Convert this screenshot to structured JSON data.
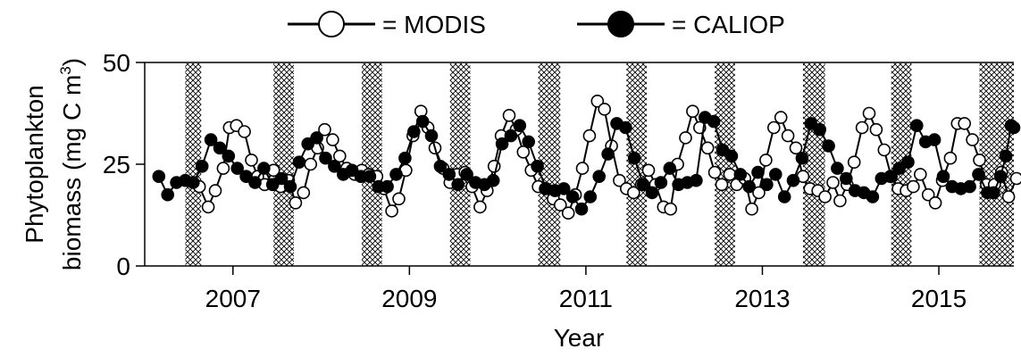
{
  "chart_data": {
    "type": "line",
    "title": "",
    "xlabel": "Year",
    "ylabel_line1": "Phytoplankton",
    "ylabel_line2": "biomass (mg C m",
    "ylabel_sup": "3",
    "ylabel_close": ")",
    "xlim": [
      2006.0,
      2015.85
    ],
    "ylim": [
      0,
      50
    ],
    "y_ticks": [
      0,
      25,
      50
    ],
    "x_ticks": [
      2007,
      2009,
      2011,
      2013,
      2015
    ],
    "x_tick_labels": [
      "2007",
      "2009",
      "2011",
      "2013",
      "2015"
    ],
    "grid": false,
    "legend_position": "top-center",
    "shaded_periods": [
      [
        2006.46,
        2006.64
      ],
      [
        2007.46,
        2007.69
      ],
      [
        2008.46,
        2008.69
      ],
      [
        2009.46,
        2009.69
      ],
      [
        2010.46,
        2010.71
      ],
      [
        2011.46,
        2011.69
      ],
      [
        2012.46,
        2012.69
      ],
      [
        2013.46,
        2013.71
      ],
      [
        2014.46,
        2014.69
      ],
      [
        2015.46,
        2015.85
      ]
    ],
    "series": [
      {
        "name": "= MODIS",
        "marker": "open-circle",
        "points": [
          [
            2006.62,
            19.5
          ],
          [
            2006.72,
            14.5
          ],
          [
            2006.8,
            18.5
          ],
          [
            2006.89,
            24
          ],
          [
            2006.96,
            34
          ],
          [
            2007.04,
            34.5
          ],
          [
            2007.13,
            33
          ],
          [
            2007.21,
            26
          ],
          [
            2007.28,
            22
          ],
          [
            2007.36,
            20
          ],
          [
            2007.46,
            23.5
          ],
          [
            2007.54,
            19.5
          ],
          [
            2007.63,
            21
          ],
          [
            2007.71,
            15.5
          ],
          [
            2007.8,
            18
          ],
          [
            2007.88,
            25
          ],
          [
            2007.96,
            29
          ],
          [
            2008.04,
            33.5
          ],
          [
            2008.13,
            31
          ],
          [
            2008.21,
            27
          ],
          [
            2008.29,
            24
          ],
          [
            2008.38,
            22.5
          ],
          [
            2008.46,
            23.5
          ],
          [
            2008.54,
            22.5
          ],
          [
            2008.63,
            22
          ],
          [
            2008.71,
            19
          ],
          [
            2008.8,
            13.5
          ],
          [
            2008.88,
            16.5
          ],
          [
            2008.96,
            23.5
          ],
          [
            2009.04,
            32
          ],
          [
            2009.13,
            38
          ],
          [
            2009.21,
            34
          ],
          [
            2009.29,
            29
          ],
          [
            2009.38,
            24
          ],
          [
            2009.46,
            20.5
          ],
          [
            2009.54,
            22.5
          ],
          [
            2009.63,
            23
          ],
          [
            2009.71,
            19.5
          ],
          [
            2009.8,
            14.5
          ],
          [
            2009.88,
            18.5
          ],
          [
            2009.96,
            24.5
          ],
          [
            2010.04,
            32
          ],
          [
            2010.13,
            37
          ],
          [
            2010.21,
            33.5
          ],
          [
            2010.29,
            28
          ],
          [
            2010.38,
            23.5
          ],
          [
            2010.46,
            19.5
          ],
          [
            2010.54,
            19
          ],
          [
            2010.63,
            16.5
          ],
          [
            2010.71,
            15
          ],
          [
            2010.8,
            13
          ],
          [
            2010.88,
            17.5
          ],
          [
            2010.96,
            24
          ],
          [
            2011.04,
            32
          ],
          [
            2011.13,
            40.5
          ],
          [
            2011.21,
            38.5
          ],
          [
            2011.29,
            29.5
          ],
          [
            2011.38,
            21
          ],
          [
            2011.46,
            19
          ],
          [
            2011.54,
            18
          ],
          [
            2011.63,
            20
          ],
          [
            2011.71,
            23.5
          ],
          [
            2011.79,
            20
          ],
          [
            2011.88,
            14.5
          ],
          [
            2011.96,
            14
          ],
          [
            2012.04,
            25
          ],
          [
            2012.13,
            31.5
          ],
          [
            2012.21,
            38
          ],
          [
            2012.29,
            34
          ],
          [
            2012.38,
            29
          ],
          [
            2012.46,
            23
          ],
          [
            2012.54,
            20
          ],
          [
            2012.63,
            22.5
          ],
          [
            2012.71,
            20
          ],
          [
            2012.8,
            21.5
          ],
          [
            2012.88,
            14
          ],
          [
            2012.96,
            18
          ],
          [
            2013.04,
            26
          ],
          [
            2013.13,
            34
          ],
          [
            2013.21,
            36.5
          ],
          [
            2013.29,
            32
          ],
          [
            2013.38,
            29
          ],
          [
            2013.46,
            22
          ],
          [
            2013.54,
            19
          ],
          [
            2013.63,
            18.5
          ],
          [
            2013.71,
            17
          ],
          [
            2013.8,
            20.5
          ],
          [
            2013.88,
            16
          ],
          [
            2013.96,
            20
          ],
          [
            2014.04,
            25.5
          ],
          [
            2014.13,
            34
          ],
          [
            2014.21,
            37.5
          ],
          [
            2014.29,
            33.5
          ],
          [
            2014.38,
            28.5
          ],
          [
            2014.46,
            22
          ],
          [
            2014.54,
            19
          ],
          [
            2014.63,
            18.5
          ],
          [
            2014.71,
            19.5
          ],
          [
            2014.79,
            22.5
          ],
          [
            2014.88,
            17.5
          ],
          [
            2014.96,
            15.5
          ],
          [
            2015.04,
            21
          ],
          [
            2015.13,
            26.5
          ],
          [
            2015.21,
            35
          ],
          [
            2015.29,
            35
          ],
          [
            2015.38,
            31
          ],
          [
            2015.46,
            26
          ],
          [
            2015.54,
            20
          ],
          [
            2015.63,
            20
          ],
          [
            2015.71,
            23
          ],
          [
            2015.79,
            17
          ],
          [
            2015.88,
            21.5
          ]
        ]
      },
      {
        "name": "= CALIOP",
        "marker": "filled-circle",
        "points": [
          [
            2006.16,
            22
          ],
          [
            2006.26,
            17.5
          ],
          [
            2006.36,
            20.5
          ],
          [
            2006.46,
            21
          ],
          [
            2006.55,
            20.5
          ],
          [
            2006.65,
            24.5
          ],
          [
            2006.75,
            31
          ],
          [
            2006.85,
            29
          ],
          [
            2006.95,
            27
          ],
          [
            2007.05,
            24
          ],
          [
            2007.15,
            22
          ],
          [
            2007.25,
            20.5
          ],
          [
            2007.35,
            24
          ],
          [
            2007.45,
            20
          ],
          [
            2007.55,
            21.5
          ],
          [
            2007.65,
            19.5
          ],
          [
            2007.75,
            25.5
          ],
          [
            2007.85,
            30
          ],
          [
            2007.95,
            31.5
          ],
          [
            2008.05,
            26.5
          ],
          [
            2008.15,
            24.5
          ],
          [
            2008.25,
            22.5
          ],
          [
            2008.35,
            23.5
          ],
          [
            2008.45,
            22
          ],
          [
            2008.55,
            22
          ],
          [
            2008.65,
            19.5
          ],
          [
            2008.75,
            19.5
          ],
          [
            2008.85,
            22.5
          ],
          [
            2008.95,
            26.5
          ],
          [
            2009.05,
            33
          ],
          [
            2009.15,
            35.5
          ],
          [
            2009.25,
            32
          ],
          [
            2009.35,
            24.5
          ],
          [
            2009.45,
            22.5
          ],
          [
            2009.55,
            20
          ],
          [
            2009.65,
            22.5
          ],
          [
            2009.75,
            20.5
          ],
          [
            2009.85,
            20
          ],
          [
            2009.95,
            21
          ],
          [
            2010.05,
            30
          ],
          [
            2010.15,
            32
          ],
          [
            2010.25,
            34.5
          ],
          [
            2010.35,
            30.5
          ],
          [
            2010.45,
            24.5
          ],
          [
            2010.55,
            19
          ],
          [
            2010.65,
            18.5
          ],
          [
            2010.75,
            19
          ],
          [
            2010.85,
            17
          ],
          [
            2010.95,
            14
          ],
          [
            2011.05,
            17
          ],
          [
            2011.15,
            22
          ],
          [
            2011.25,
            27.5
          ],
          [
            2011.35,
            35
          ],
          [
            2011.45,
            34
          ],
          [
            2011.55,
            26.5
          ],
          [
            2011.65,
            20
          ],
          [
            2011.75,
            18
          ],
          [
            2011.85,
            20.5
          ],
          [
            2011.95,
            24
          ],
          [
            2012.05,
            20
          ],
          [
            2012.15,
            20.5
          ],
          [
            2012.25,
            21
          ],
          [
            2012.35,
            36.5
          ],
          [
            2012.45,
            35.5
          ],
          [
            2012.55,
            28.5
          ],
          [
            2012.65,
            27
          ],
          [
            2012.75,
            22.5
          ],
          [
            2012.85,
            19.5
          ],
          [
            2012.95,
            23
          ],
          [
            2013.05,
            20
          ],
          [
            2013.15,
            22.5
          ],
          [
            2013.25,
            17
          ],
          [
            2013.35,
            21
          ],
          [
            2013.45,
            26.5
          ],
          [
            2013.55,
            35
          ],
          [
            2013.65,
            33.5
          ],
          [
            2013.75,
            29.5
          ],
          [
            2013.85,
            24
          ],
          [
            2013.95,
            21.5
          ],
          [
            2014.05,
            18.5
          ],
          [
            2014.15,
            18
          ],
          [
            2014.25,
            17
          ],
          [
            2014.35,
            21.5
          ],
          [
            2014.45,
            22
          ],
          [
            2014.55,
            24
          ],
          [
            2014.65,
            25.5
          ],
          [
            2014.75,
            34.5
          ],
          [
            2014.85,
            30.5
          ],
          [
            2014.95,
            31
          ],
          [
            2015.05,
            22
          ],
          [
            2015.15,
            19.5
          ],
          [
            2015.25,
            19
          ],
          [
            2015.35,
            19.5
          ],
          [
            2015.45,
            22.5
          ],
          [
            2015.55,
            18
          ],
          [
            2015.62,
            18
          ],
          [
            2015.7,
            22
          ],
          [
            2015.76,
            27
          ],
          [
            2015.82,
            34.5
          ],
          [
            2015.85,
            34
          ]
        ]
      }
    ]
  }
}
